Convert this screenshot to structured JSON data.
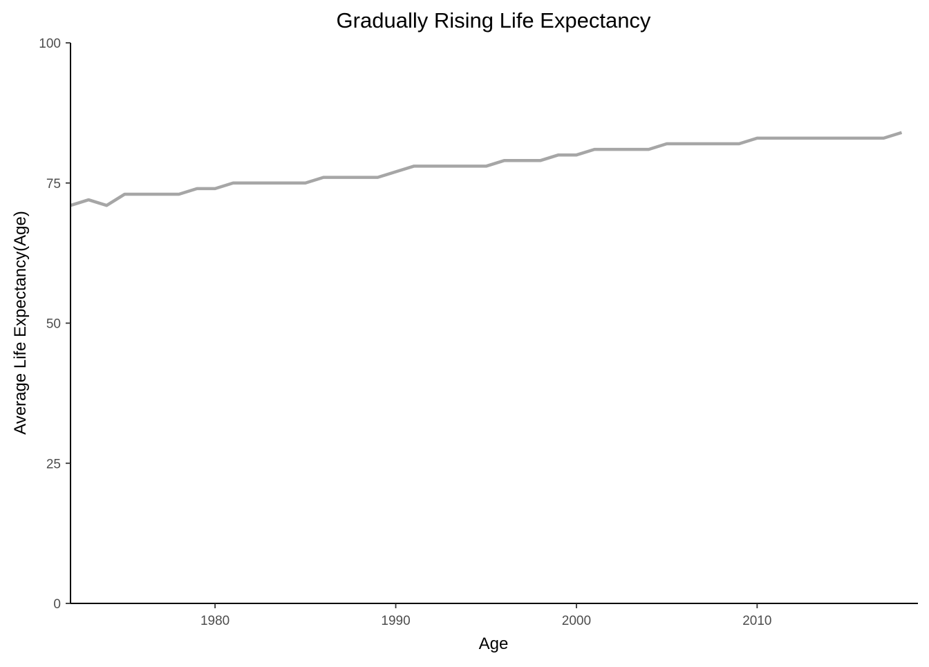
{
  "chart_data": {
    "type": "line",
    "title": "Gradually Rising Life Expectancy",
    "xlabel": "Age",
    "ylabel": "Average Life Expectancy(Age)",
    "xlim": [
      1972,
      2018.9
    ],
    "ylim": [
      0,
      100
    ],
    "x_ticks": [
      1980,
      1990,
      2000,
      2010
    ],
    "y_ticks": [
      0,
      25,
      50,
      75,
      100
    ],
    "grid": false,
    "legend": "none",
    "line_color": "#a6a6a6",
    "x": [
      1972,
      1973,
      1974,
      1975,
      1976,
      1977,
      1978,
      1979,
      1980,
      1981,
      1982,
      1983,
      1984,
      1985,
      1986,
      1987,
      1988,
      1989,
      1990,
      1991,
      1992,
      1993,
      1994,
      1995,
      1996,
      1997,
      1998,
      1999,
      2000,
      2001,
      2002,
      2003,
      2004,
      2005,
      2006,
      2007,
      2008,
      2009,
      2010,
      2011,
      2012,
      2013,
      2014,
      2015,
      2016,
      2017,
      2018
    ],
    "y": [
      71,
      72,
      71,
      73,
      73,
      73,
      73,
      74,
      74,
      75,
      75,
      75,
      75,
      75,
      76,
      76,
      76,
      76,
      77,
      78,
      78,
      78,
      78,
      78,
      79,
      79,
      79,
      80,
      80,
      81,
      81,
      81,
      81,
      82,
      82,
      82,
      82,
      82,
      83,
      83,
      83,
      83,
      83,
      83,
      83,
      83,
      84
    ]
  }
}
